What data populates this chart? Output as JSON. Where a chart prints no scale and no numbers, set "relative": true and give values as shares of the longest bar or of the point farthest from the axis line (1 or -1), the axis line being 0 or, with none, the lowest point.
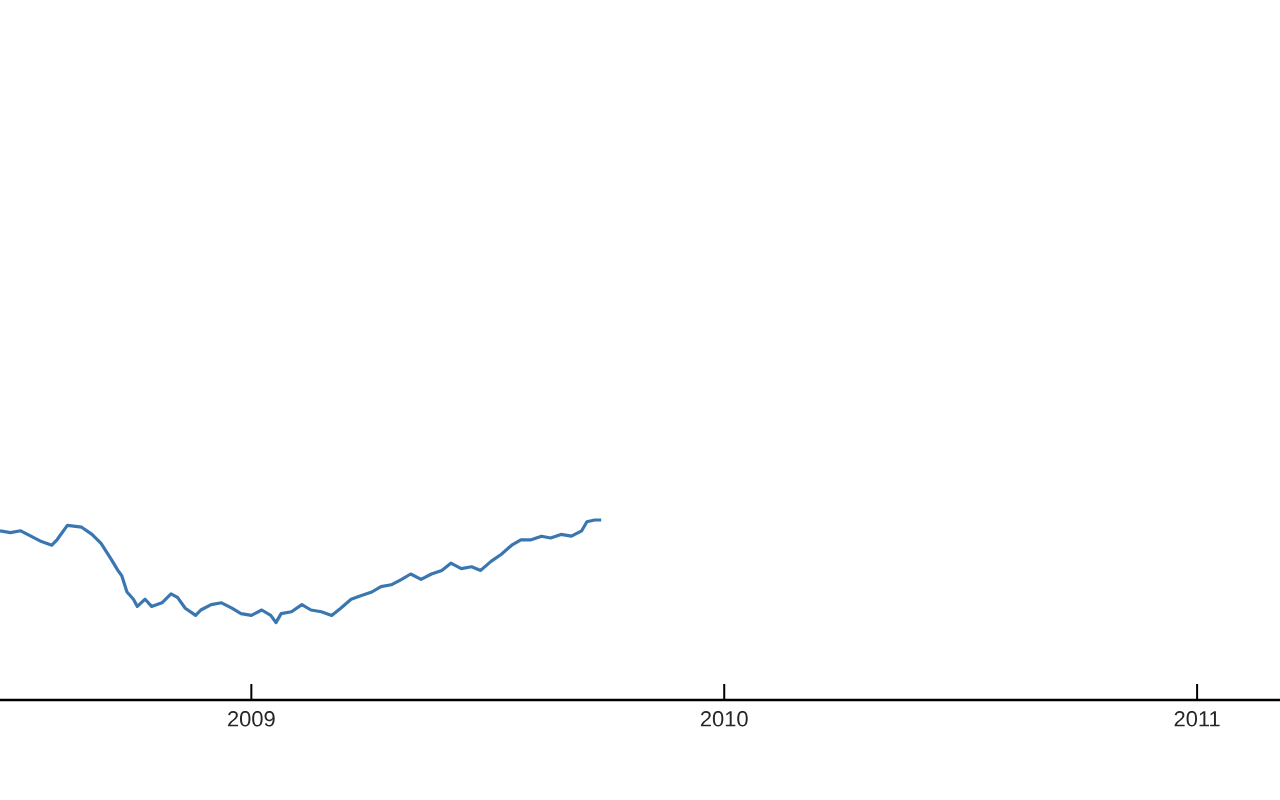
{
  "chart_data": {
    "type": "line",
    "relative": true,
    "color": "#3a77b0",
    "xlim": [
      "2008-06-21",
      "2011-03-06"
    ],
    "xticks": [
      "2009",
      "2010",
      "2011"
    ],
    "x": [
      "2008-06-21",
      "2008-06-29",
      "2008-07-07",
      "2008-07-15",
      "2008-07-23",
      "2008-07-31",
      "2008-08-04",
      "2008-08-12",
      "2008-08-23",
      "2008-08-31",
      "2008-09-07",
      "2008-09-15",
      "2008-09-20",
      "2008-09-23",
      "2008-09-27",
      "2008-10-02",
      "2008-10-05",
      "2008-10-11",
      "2008-10-16",
      "2008-10-24",
      "2008-10-31",
      "2008-11-05",
      "2008-11-11",
      "2008-11-19",
      "2008-11-23",
      "2008-12-01",
      "2008-12-09",
      "2008-12-17",
      "2008-12-24",
      "2009-01-01",
      "2009-01-09",
      "2009-01-16",
      "2009-01-20",
      "2009-01-24",
      "2009-02-01",
      "2009-02-09",
      "2009-02-16",
      "2009-02-24",
      "2009-03-04",
      "2009-03-11",
      "2009-03-19",
      "2009-03-27",
      "2009-04-04",
      "2009-04-11",
      "2009-04-19",
      "2009-04-27",
      "2009-05-04",
      "2009-05-12",
      "2009-05-20",
      "2009-05-28",
      "2009-06-04",
      "2009-06-12",
      "2009-06-20",
      "2009-06-27",
      "2009-07-05",
      "2009-07-13",
      "2009-07-21",
      "2009-07-28",
      "2009-08-05",
      "2009-08-13",
      "2009-08-20",
      "2009-08-28",
      "2009-09-05",
      "2009-09-13",
      "2009-09-17",
      "2009-09-23",
      "2009-09-28"
    ],
    "values": [
      0.94,
      0.93,
      0.94,
      0.91,
      0.88,
      0.86,
      0.89,
      0.97,
      0.96,
      0.92,
      0.87,
      0.78,
      0.72,
      0.69,
      0.6,
      0.56,
      0.52,
      0.56,
      0.52,
      0.54,
      0.59,
      0.57,
      0.51,
      0.47,
      0.5,
      0.53,
      0.54,
      0.51,
      0.48,
      0.47,
      0.5,
      0.47,
      0.43,
      0.48,
      0.49,
      0.53,
      0.5,
      0.49,
      0.47,
      0.51,
      0.56,
      0.58,
      0.6,
      0.63,
      0.64,
      0.67,
      0.7,
      0.67,
      0.7,
      0.72,
      0.76,
      0.73,
      0.74,
      0.72,
      0.77,
      0.81,
      0.86,
      0.89,
      0.89,
      0.91,
      0.9,
      0.92,
      0.91,
      0.94,
      0.99,
      1,
      1
    ]
  }
}
